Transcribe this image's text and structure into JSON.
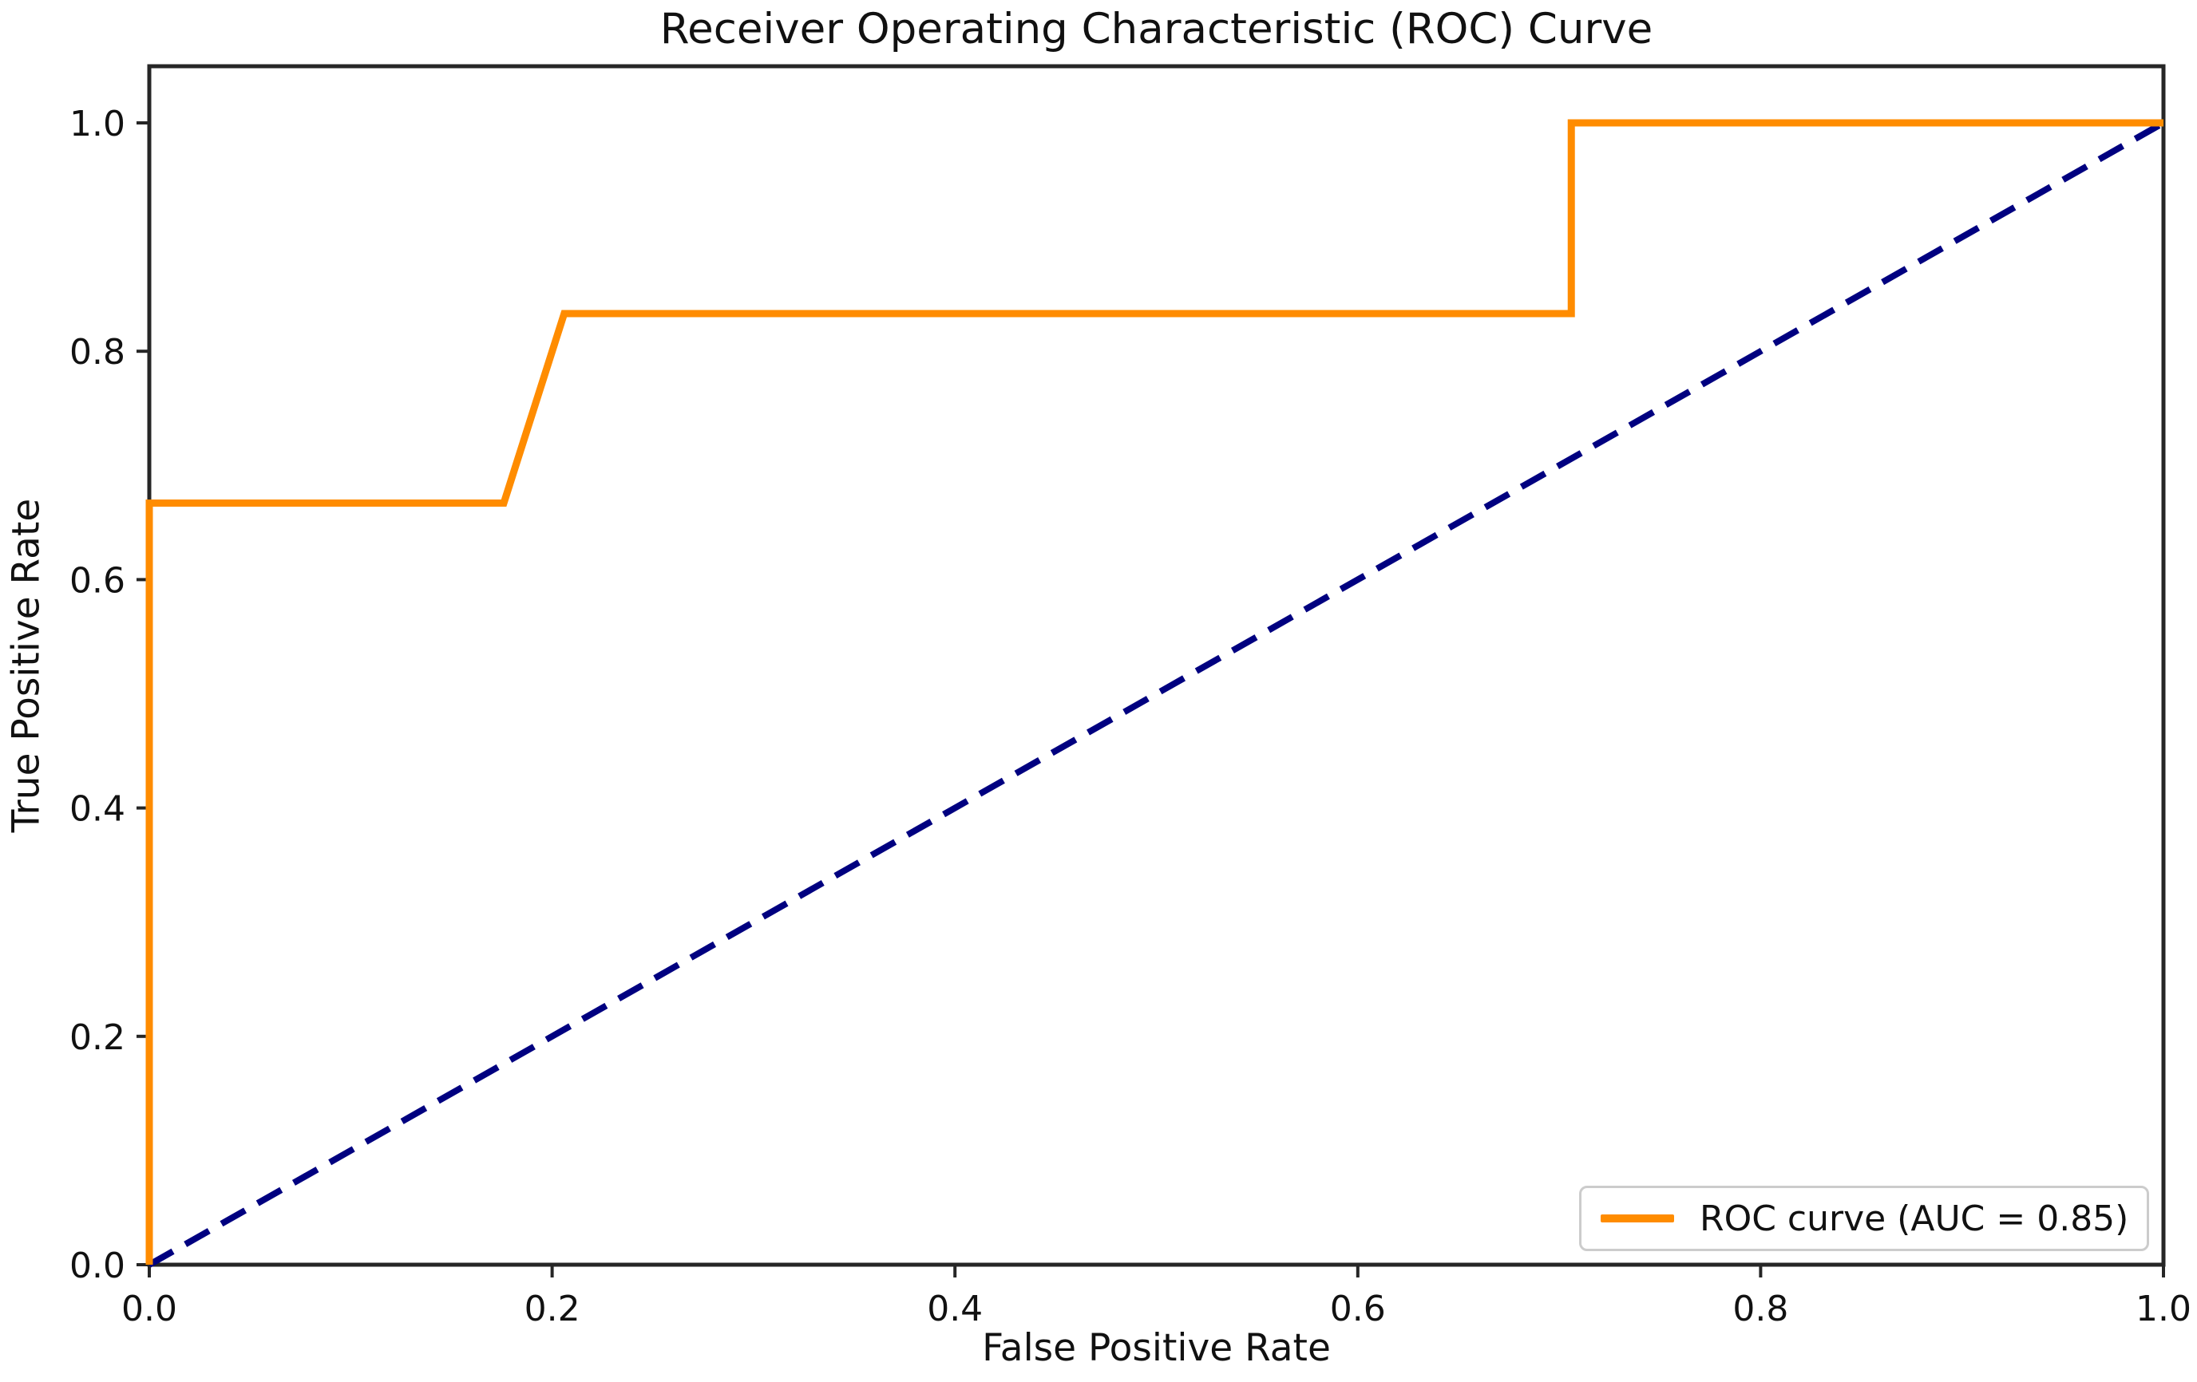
{
  "chart_data": {
    "type": "line",
    "title": "Receiver Operating Characteristic (ROC) Curve",
    "xlabel": "False Positive Rate",
    "ylabel": "True Positive Rate",
    "xlim": [
      0.0,
      1.0
    ],
    "ylim": [
      0.0,
      1.05
    ],
    "xticks": [
      0.0,
      0.2,
      0.4,
      0.6,
      0.8,
      1.0
    ],
    "yticks": [
      0.0,
      0.2,
      0.4,
      0.6,
      0.8,
      1.0
    ],
    "xtick_labels": [
      "0.0",
      "0.2",
      "0.4",
      "0.6",
      "0.8",
      "1.0"
    ],
    "ytick_labels": [
      "0.0",
      "0.2",
      "0.4",
      "0.6",
      "0.8",
      "1.0"
    ],
    "grid": false,
    "legend": {
      "position": "lower right",
      "entries": [
        "ROC curve (AUC = 0.85)"
      ]
    },
    "auc": 0.85,
    "series": [
      {
        "name": "Chance diagonal",
        "color": "#000080",
        "style": "dashed",
        "in_legend": false,
        "points": [
          [
            0.0,
            0.0
          ],
          [
            1.0,
            1.0
          ]
        ]
      },
      {
        "name": "ROC curve (AUC = 0.85)",
        "color": "#ff8c00",
        "style": "solid",
        "in_legend": true,
        "points": [
          [
            0.0,
            0.0
          ],
          [
            0.0,
            0.667
          ],
          [
            0.176,
            0.667
          ],
          [
            0.206,
            0.833
          ],
          [
            0.706,
            0.833
          ],
          [
            0.706,
            1.0
          ],
          [
            1.0,
            1.0
          ]
        ]
      }
    ],
    "colors": {
      "roc_line": "#ff8c00",
      "chance_line": "#000080",
      "axis": "#262626",
      "tick_text": "#111111",
      "legend_border": "#cccccc",
      "background": "#ffffff"
    }
  }
}
